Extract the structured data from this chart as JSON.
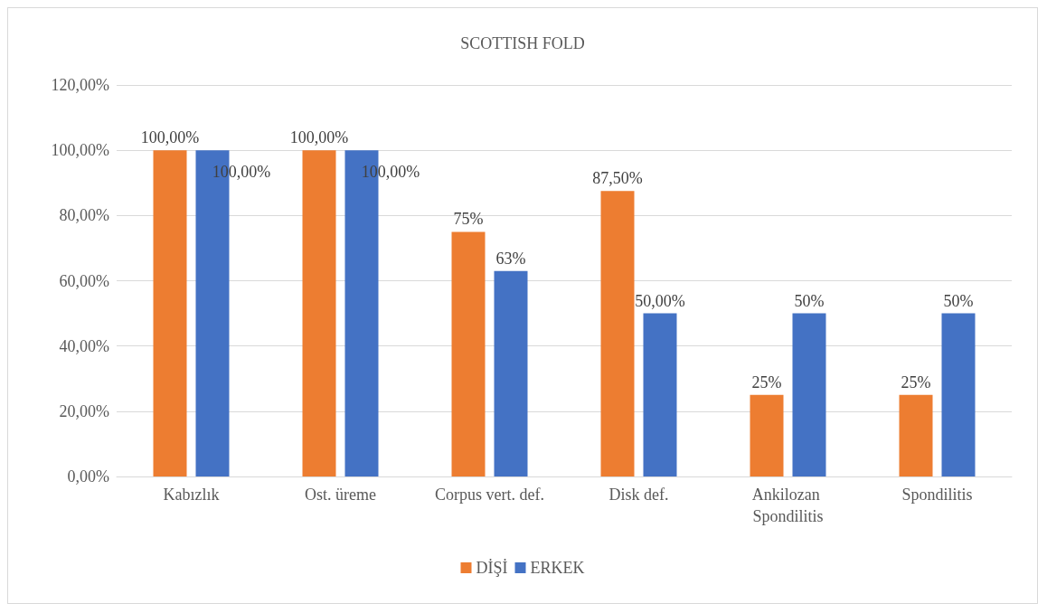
{
  "chart_data": {
    "type": "bar",
    "title": "SCOTTISH FOLD",
    "categories": [
      "Kabızlık",
      "Ost. üreme",
      "Corpus vert. def.",
      "Disk def.",
      "Ankilozan Spondilitis",
      "Spondilitis"
    ],
    "series": [
      {
        "name": "DİŞİ",
        "color": "#ed7d31",
        "values": [
          100,
          100,
          75,
          87.5,
          25,
          25
        ],
        "value_labels": [
          "100,00%",
          "100,00%",
          "75%",
          "87,50%",
          "25%",
          "25%"
        ]
      },
      {
        "name": "ERKEK",
        "color": "#4472c4",
        "values": [
          100,
          100,
          63,
          50,
          50,
          50
        ],
        "value_labels": [
          "100,00%",
          "100,00%",
          "63%",
          "50,00%",
          "50%",
          "50%"
        ]
      }
    ],
    "ylim": [
      0,
      120
    ],
    "yticks": [
      {
        "value": 0,
        "label": "0,00%"
      },
      {
        "value": 20,
        "label": "20,00%"
      },
      {
        "value": 40,
        "label": "40,00%"
      },
      {
        "value": 60,
        "label": "60,00%"
      },
      {
        "value": 80,
        "label": "80,00%"
      },
      {
        "value": 100,
        "label": "100,00%"
      },
      {
        "value": 120,
        "label": "120,00%"
      }
    ],
    "grid": "y",
    "legend": "bottom"
  }
}
